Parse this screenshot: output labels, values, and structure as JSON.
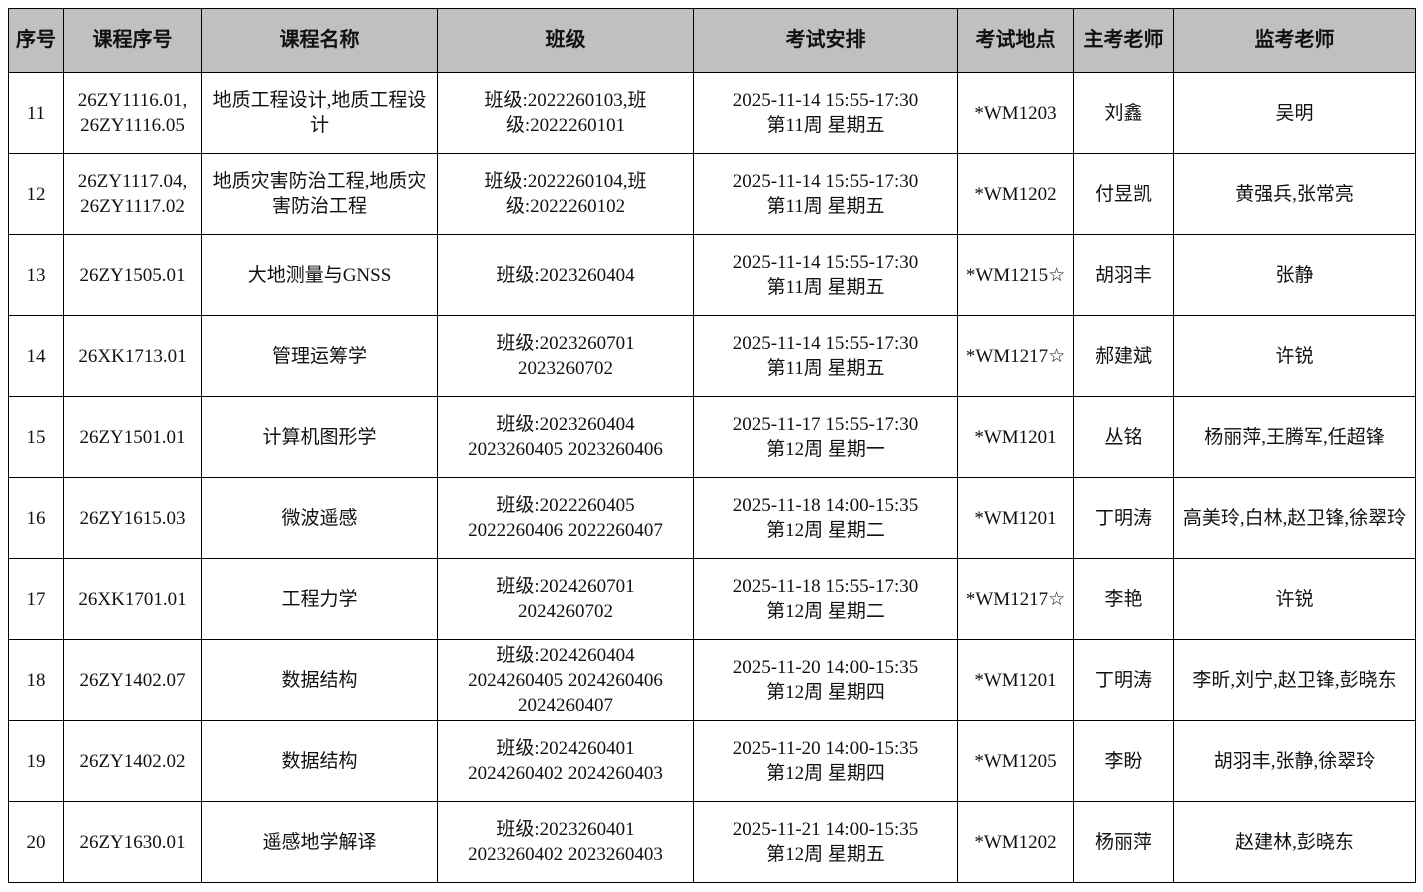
{
  "headers": [
    "序号",
    "课程序号",
    "课程名称",
    "班级",
    "考试安排",
    "考试地点",
    "主考老师",
    "监考老师"
  ],
  "rows": [
    {
      "no": "11",
      "course_id": "26ZY1116.01,\n26ZY1116.05",
      "course_name": "地质工程设计,地质工程设计",
      "class": "班级:2022260103,班级:2022260101",
      "schedule": "2025-11-14 15:55-17:30\n第11周 星期五",
      "location": "*WM1203",
      "examiner": "刘鑫",
      "proctors": "吴明"
    },
    {
      "no": "12",
      "course_id": "26ZY1117.04,\n26ZY1117.02",
      "course_name": "地质灾害防治工程,地质灾害防治工程",
      "class": "班级:2022260104,班级:2022260102",
      "schedule": "2025-11-14 15:55-17:30\n第11周 星期五",
      "location": "*WM1202",
      "examiner": "付昱凯",
      "proctors": "黄强兵,张常亮"
    },
    {
      "no": "13",
      "course_id": "26ZY1505.01",
      "course_name": "大地测量与GNSS",
      "class": "班级:2023260404",
      "schedule": "2025-11-14 15:55-17:30\n第11周 星期五",
      "location": "*WM1215☆",
      "examiner": "胡羽丰",
      "proctors": "张静"
    },
    {
      "no": "14",
      "course_id": "26XK1713.01",
      "course_name": "管理运筹学",
      "class": "班级:2023260701\n2023260702",
      "schedule": "2025-11-14 15:55-17:30\n第11周 星期五",
      "location": "*WM1217☆",
      "examiner": "郝建斌",
      "proctors": "许锐"
    },
    {
      "no": "15",
      "course_id": "26ZY1501.01",
      "course_name": "计算机图形学",
      "class": "班级:2023260404\n2023260405 2023260406",
      "schedule": "2025-11-17 15:55-17:30\n第12周 星期一",
      "location": "*WM1201",
      "examiner": "丛铭",
      "proctors": "杨丽萍,王腾军,任超锋"
    },
    {
      "no": "16",
      "course_id": "26ZY1615.03",
      "course_name": "微波遥感",
      "class": "班级:2022260405\n2022260406 2022260407",
      "schedule": "2025-11-18 14:00-15:35\n第12周 星期二",
      "location": "*WM1201",
      "examiner": "丁明涛",
      "proctors": "高美玲,白林,赵卫锋,徐翠玲"
    },
    {
      "no": "17",
      "course_id": "26XK1701.01",
      "course_name": "工程力学",
      "class": "班级:2024260701\n2024260702",
      "schedule": "2025-11-18 15:55-17:30\n第12周 星期二",
      "location": "*WM1217☆",
      "examiner": "李艳",
      "proctors": "许锐"
    },
    {
      "no": "18",
      "course_id": "26ZY1402.07",
      "course_name": "数据结构",
      "class": "班级:2024260404\n2024260405 2024260406\n2024260407",
      "schedule": "2025-11-20 14:00-15:35\n第12周 星期四",
      "location": "*WM1201",
      "examiner": "丁明涛",
      "proctors": "李昕,刘宁,赵卫锋,彭晓东"
    },
    {
      "no": "19",
      "course_id": "26ZY1402.02",
      "course_name": "数据结构",
      "class": "班级:2024260401\n2024260402 2024260403",
      "schedule": "2025-11-20 14:00-15:35\n第12周 星期四",
      "location": "*WM1205",
      "examiner": "李盼",
      "proctors": "胡羽丰,张静,徐翠玲"
    },
    {
      "no": "20",
      "course_id": "26ZY1630.01",
      "course_name": "遥感地学解译",
      "class": "班级:2023260401\n2023260402 2023260403",
      "schedule": "2025-11-21 14:00-15:35\n第12周 星期五",
      "location": "*WM1202",
      "examiner": "杨丽萍",
      "proctors": "赵建林,彭晓东"
    }
  ]
}
